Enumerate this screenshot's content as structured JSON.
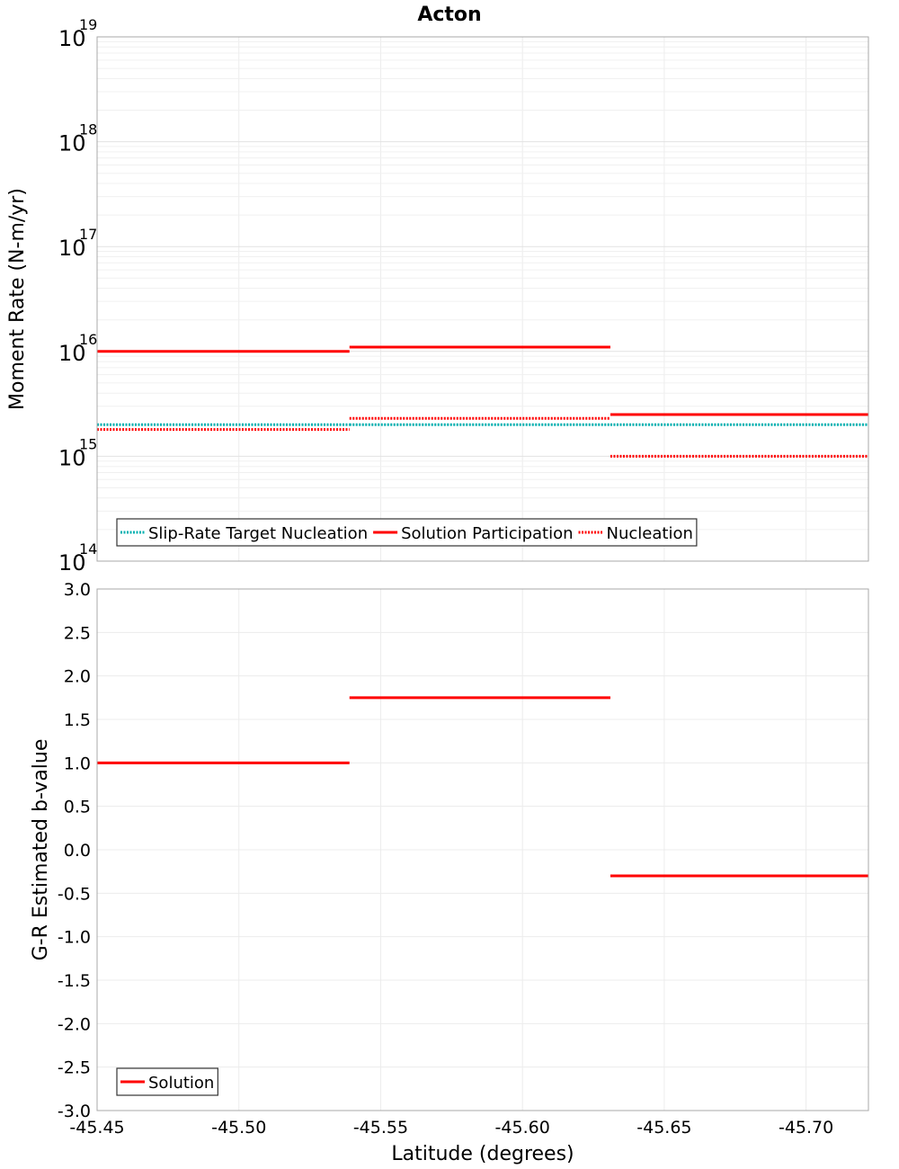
{
  "chart_data": {
    "title": "Acton",
    "xlabel": "Latitude (degrees)",
    "xlim": [
      -45.45,
      -45.722
    ],
    "x_ticks": [
      -45.45,
      -45.5,
      -45.55,
      -45.6,
      -45.65,
      -45.7
    ],
    "x_tick_labels": [
      "-45.45",
      "-45.50",
      "-45.55",
      "-45.60",
      "-45.65",
      "-45.70"
    ],
    "panels": [
      {
        "type": "step-line",
        "ylabel": "Moment Rate (N-m/yr)",
        "yscale": "log",
        "ylim": [
          100000000000000.0,
          1e+19
        ],
        "y_ticks": [
          {
            "base": "10",
            "exp": "14",
            "value": 100000000000000.0
          },
          {
            "base": "10",
            "exp": "15",
            "value": 1000000000000000.0
          },
          {
            "base": "10",
            "exp": "16",
            "value": 1e+16
          },
          {
            "base": "10",
            "exp": "17",
            "value": 1e+17
          },
          {
            "base": "10",
            "exp": "18",
            "value": 1e+18
          },
          {
            "base": "10",
            "exp": "19",
            "value": 1e+19
          }
        ],
        "legend_position": "bottom-left",
        "series": [
          {
            "name": "Slip-Rate Target Nucleation",
            "color": "#00b0b0",
            "style": "dotted",
            "segments": [
              {
                "x0": -45.45,
                "x1": -45.539,
                "y": 2000000000000000.0
              },
              {
                "x0": -45.539,
                "x1": -45.631,
                "y": 2000000000000000.0
              },
              {
                "x0": -45.631,
                "x1": -45.722,
                "y": 2000000000000000.0
              }
            ]
          },
          {
            "name": "Solution Participation",
            "color": "#ff0000",
            "style": "solid",
            "segments": [
              {
                "x0": -45.45,
                "x1": -45.539,
                "y": 1e+16
              },
              {
                "x0": -45.539,
                "x1": -45.631,
                "y": 1.1e+16
              },
              {
                "x0": -45.631,
                "x1": -45.722,
                "y": 2500000000000000.0
              }
            ]
          },
          {
            "name": "Nucleation",
            "color": "#ff0000",
            "style": "dotted",
            "segments": [
              {
                "x0": -45.45,
                "x1": -45.539,
                "y": 1800000000000000.0
              },
              {
                "x0": -45.539,
                "x1": -45.631,
                "y": 2300000000000000.0
              },
              {
                "x0": -45.631,
                "x1": -45.722,
                "y": 1000000000000000.0
              }
            ]
          }
        ]
      },
      {
        "type": "step-line",
        "ylabel": "G-R Estimated b-value",
        "yscale": "linear",
        "ylim": [
          -3.0,
          3.0
        ],
        "y_ticks": [
          3.0,
          2.5,
          2.0,
          1.5,
          1.0,
          0.5,
          0.0,
          -0.5,
          -1.0,
          -1.5,
          -2.0,
          -2.5,
          -3.0
        ],
        "y_tick_labels": [
          "3.0",
          "2.5",
          "2.0",
          "1.5",
          "1.0",
          "0.5",
          "0.0",
          "-0.5",
          "-1.0",
          "-1.5",
          "-2.0",
          "-2.5",
          "-3.0"
        ],
        "legend_position": "bottom-left",
        "series": [
          {
            "name": "Solution",
            "color": "#ff0000",
            "style": "solid",
            "segments": [
              {
                "x0": -45.45,
                "x1": -45.539,
                "y": 1.0
              },
              {
                "x0": -45.539,
                "x1": -45.631,
                "y": 1.75
              },
              {
                "x0": -45.631,
                "x1": -45.722,
                "y": -0.3
              }
            ]
          }
        ]
      }
    ]
  }
}
